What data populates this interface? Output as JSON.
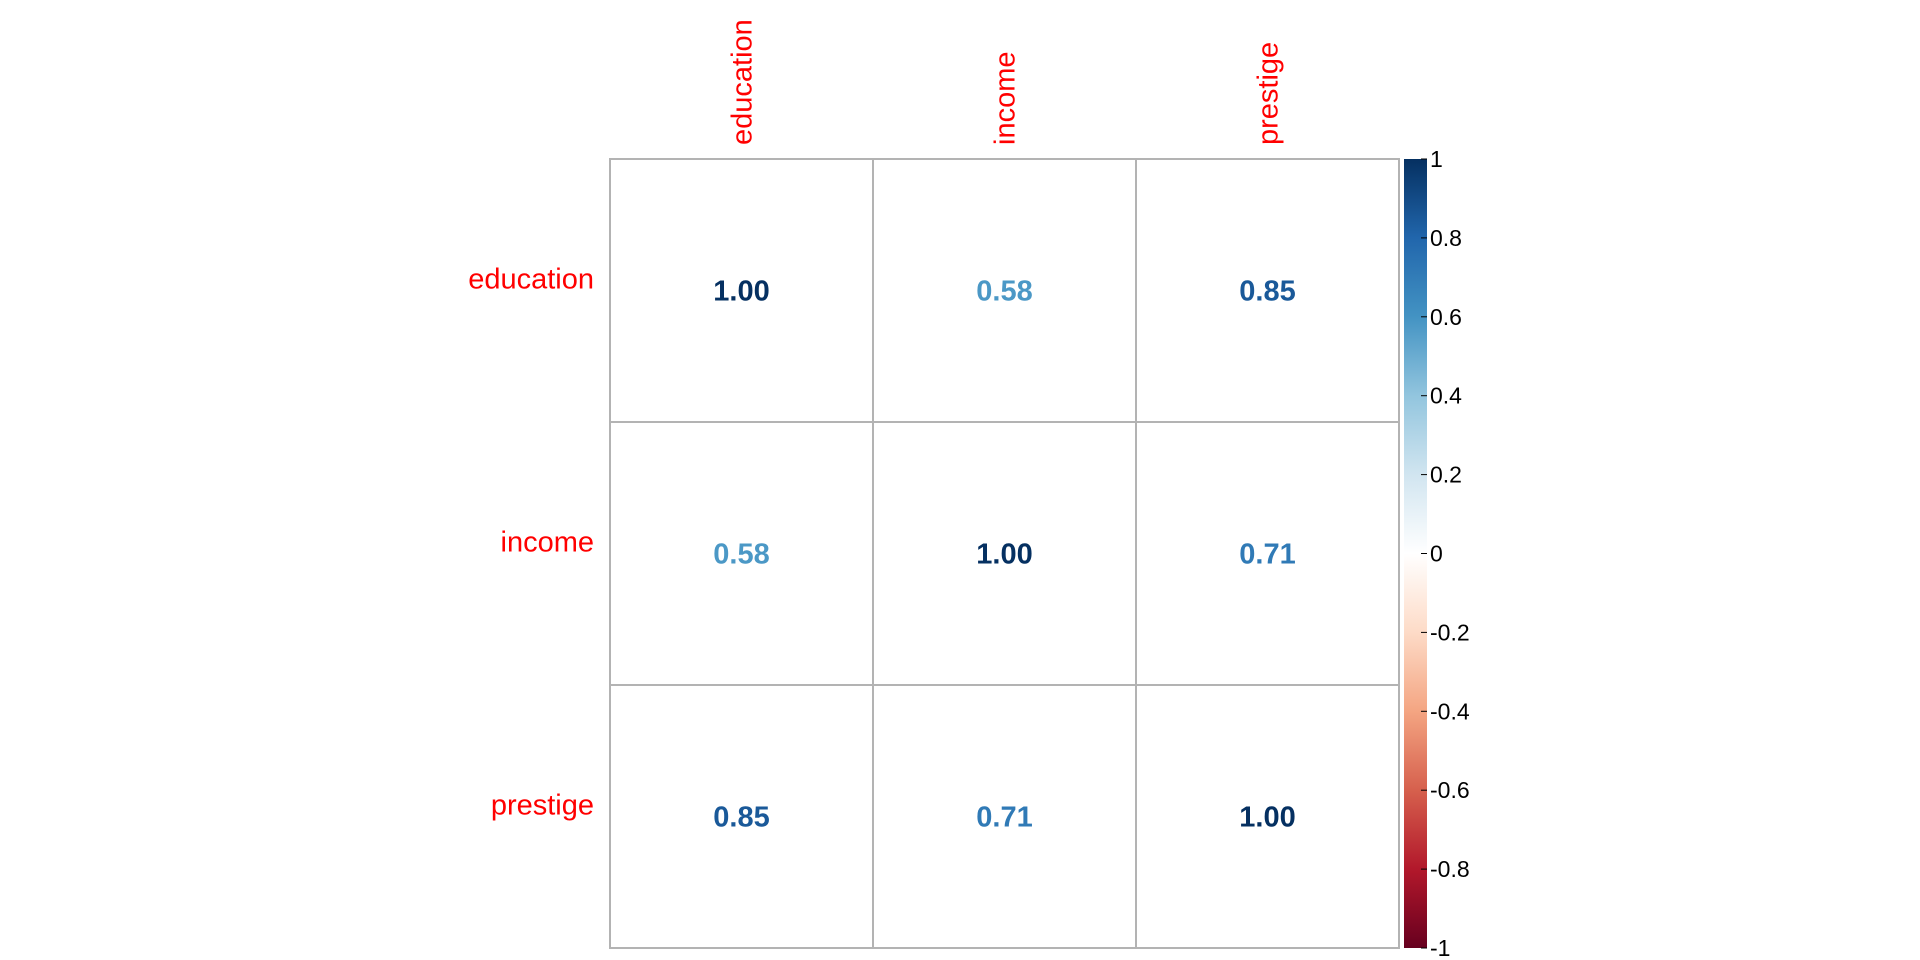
{
  "chart_data": {
    "type": "heatmap",
    "variables": [
      "education",
      "income",
      "prestige"
    ],
    "matrix": [
      [
        1.0,
        0.58,
        0.85
      ],
      [
        0.58,
        1.0,
        0.71
      ],
      [
        0.85,
        0.71,
        1.0
      ]
    ],
    "value_labels": [
      [
        "1.00",
        "0.58",
        "0.85"
      ],
      [
        "0.58",
        "1.00",
        "0.71"
      ],
      [
        "0.85",
        "0.71",
        "1.00"
      ]
    ],
    "label_color": "#FF0000",
    "grid": true,
    "colorbar": {
      "range": [
        -1,
        1
      ],
      "ticks": [
        "1",
        "0.8",
        "0.6",
        "0.4",
        "0.2",
        "0",
        "-0.2",
        "-0.4",
        "-0.6",
        "-0.8",
        "-1"
      ],
      "colors": [
        "#67001F",
        "#B2182B",
        "#D6604D",
        "#F4A582",
        "#FDDBC7",
        "#FFFFFF",
        "#D1E5F0",
        "#92C5DE",
        "#4393C3",
        "#2166AC",
        "#053061"
      ],
      "placement": "right"
    }
  }
}
